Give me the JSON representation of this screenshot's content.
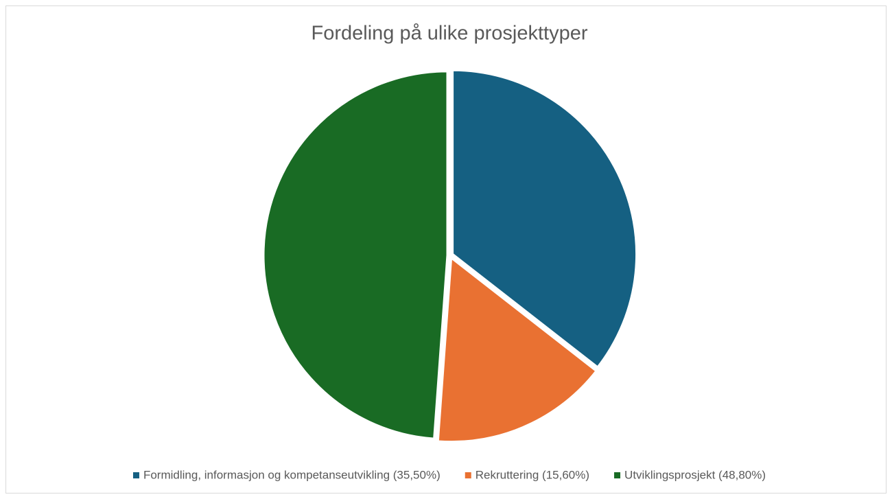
{
  "chart_data": {
    "type": "pie",
    "title": "Fordeling på ulike prosjekttyper",
    "categories": [
      "Formidling, informasjon og kompetanseutvikling (35,50%)",
      "Rekruttering (15,60%)",
      "Utviklingsprosjekt (48,80%)"
    ],
    "values": [
      35.5,
      15.6,
      48.8
    ],
    "colors": [
      "#156082",
      "#e97132",
      "#196b24"
    ],
    "legend": "bottom"
  }
}
